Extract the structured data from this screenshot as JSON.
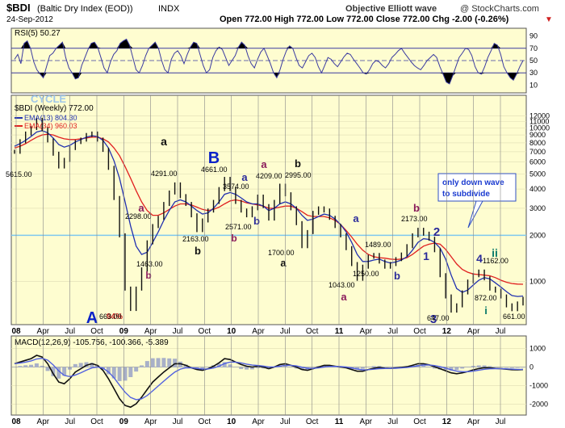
{
  "header": {
    "symbol": "$BDI",
    "symbol_desc": "(Baltic Dry Index (EOD))",
    "exchange": "INDX",
    "date": "24-Sep-2012",
    "wave_source": "Objective Elliott wave",
    "copyright": "@ StockCharts.com",
    "ohlc": "Open 772.00  High 772.00  Low 772.00  Close 772.00  Chg -2.00 (-0.26%)"
  },
  "rsi_panel": {
    "label": "RSI(5) 50.27",
    "levels": [
      "90",
      "70",
      "50",
      "30",
      "10"
    ],
    "series": [
      52,
      60,
      45,
      78,
      82,
      70,
      48,
      35,
      28,
      22,
      40,
      58,
      62,
      70,
      75,
      80,
      55,
      38,
      30,
      20,
      22,
      42,
      55,
      68,
      78,
      80,
      72,
      55,
      38,
      30,
      48,
      60,
      66,
      78,
      82,
      85,
      75,
      55,
      35,
      30,
      42,
      58,
      70,
      75,
      80,
      70,
      50,
      35,
      30,
      52,
      62,
      66,
      58,
      45,
      60,
      72,
      80,
      78,
      60,
      42,
      30,
      35,
      55,
      66,
      72,
      68,
      55,
      42,
      50,
      58,
      72,
      80,
      75,
      58,
      45,
      38,
      52,
      64,
      70,
      58,
      45,
      30,
      22,
      35,
      52,
      66,
      74,
      70,
      55,
      42,
      38,
      48,
      58,
      62,
      55,
      40,
      30,
      42,
      55,
      52,
      45,
      40,
      48,
      56,
      62,
      60,
      52,
      45,
      38,
      30,
      28,
      35,
      45,
      50,
      48,
      42,
      38,
      45,
      55,
      60,
      66,
      70,
      62,
      55,
      48,
      42,
      38,
      35,
      42,
      50,
      55,
      60,
      55,
      40,
      28,
      15,
      12,
      25,
      40,
      55,
      62,
      70,
      68,
      58,
      40,
      30,
      28,
      40,
      55,
      66,
      78,
      75,
      60,
      40,
      30,
      22,
      18,
      28,
      40,
      50
    ]
  },
  "price_panel": {
    "cycle_label": "CYCLE",
    "weekly_label": "$BDI (Weekly) 772.00",
    "ema13_label": "EMA(13) 804.30",
    "ema34_label": "EMA(34) 960.03",
    "yaxis_ticks": [
      "12000",
      "11000",
      "10000",
      "9000",
      "8000",
      "7000",
      "6000",
      "5000",
      "4000",
      "3000",
      "2000",
      "1000"
    ],
    "annotation_box": "only down wave to subdivide",
    "pct_label": "94%"
  },
  "macd_panel": {
    "label": "MACD(12,26,9) -105.756, -100.366, -5.389",
    "yaxis_ticks": [
      "1000",
      "0",
      "-1000",
      "-2000"
    ]
  },
  "x_axis_ticks": [
    "08",
    "Apr",
    "Jul",
    "Oct",
    "09",
    "Apr",
    "Jul",
    "Oct",
    "10",
    "Apr",
    "Jul",
    "Oct",
    "11",
    "Apr",
    "Jul",
    "Oct",
    "12",
    "Apr",
    "Jul"
  ],
  "chart_data": {
    "type": "line",
    "title": "$BDI (Baltic Dry Index (EOD))",
    "x_start": "2008-01",
    "x_end": "2012-09",
    "y_scale": "log",
    "series": [
      {
        "name": "$BDI (Weekly)",
        "values": [
          7000,
          8200,
          9200,
          10000,
          11300,
          9800,
          8300,
          6800,
          5615,
          6200,
          7400,
          8100,
          8400,
          9000,
          9200,
          8400,
          7200,
          5500,
          3500,
          2000,
          900,
          663,
          900,
          1200,
          1800,
          2298,
          2600,
          3200,
          3800,
          4291,
          3600,
          3200,
          2700,
          2163,
          2500,
          2900,
          3300,
          4000,
          4661,
          4000,
          3300,
          2900,
          2700,
          3000,
          3574,
          3100,
          2571,
          3300,
          4209,
          3700,
          3000,
          2400,
          1700,
          2100,
          2800,
          2995,
          2900,
          2600,
          2300,
          2000,
          1650,
          1300,
          1043,
          1250,
          1450,
          1489,
          1350,
          1250,
          1300,
          1400,
          1500,
          1700,
          2000,
          2173,
          2050,
          1900,
          1600,
          1100,
          800,
          647,
          700,
          850,
          1000,
          1100,
          1162,
          1050,
          900,
          872,
          800,
          700,
          661,
          720,
          772
        ]
      },
      {
        "name": "EMA(13)",
        "values": [
          7600,
          7900,
          8300,
          8800,
          9400,
          9600,
          9300,
          8600,
          7800,
          7500,
          7700,
          8100,
          8400,
          8700,
          8900,
          8800,
          8300,
          7400,
          6100,
          4700,
          3300,
          2300,
          1700,
          1500,
          1550,
          1800,
          2100,
          2500,
          2900,
          3300,
          3400,
          3300,
          3100,
          2900,
          2750,
          2800,
          3000,
          3300,
          3700,
          3800,
          3700,
          3500,
          3300,
          3200,
          3200,
          3100,
          2900,
          3000,
          3200,
          3300,
          3200,
          3000,
          2700,
          2500,
          2550,
          2650,
          2750,
          2700,
          2550,
          2350,
          2100,
          1800,
          1500,
          1350,
          1350,
          1380,
          1400,
          1350,
          1320,
          1340,
          1380,
          1450,
          1600,
          1800,
          1900,
          1880,
          1800,
          1650,
          1400,
          1100,
          900,
          850,
          880,
          950,
          1020,
          1060,
          1040,
          980,
          920,
          860,
          810,
          800,
          804
        ]
      },
      {
        "name": "EMA(34)",
        "values": [
          7400,
          7600,
          7900,
          8300,
          8700,
          9000,
          9100,
          9000,
          8700,
          8500,
          8400,
          8400,
          8500,
          8600,
          8700,
          8700,
          8500,
          8100,
          7400,
          6600,
          5600,
          4700,
          3900,
          3300,
          2900,
          2700,
          2700,
          2800,
          2950,
          3100,
          3200,
          3200,
          3150,
          3050,
          2950,
          2900,
          2950,
          3050,
          3200,
          3350,
          3400,
          3350,
          3250,
          3200,
          3150,
          3100,
          3000,
          3000,
          3050,
          3100,
          3100,
          3000,
          2850,
          2700,
          2650,
          2650,
          2650,
          2600,
          2500,
          2350,
          2150,
          1950,
          1750,
          1600,
          1500,
          1450,
          1430,
          1420,
          1400,
          1390,
          1400,
          1430,
          1500,
          1600,
          1700,
          1750,
          1780,
          1750,
          1620,
          1450,
          1300,
          1200,
          1150,
          1120,
          1110,
          1100,
          1090,
          1060,
          1020,
          990,
          970,
          962,
          960
        ]
      }
    ],
    "wave_labels": [
      {
        "text": "A",
        "color": "#0b23c8"
      },
      {
        "text": "a",
        "color": "#8a1a5a"
      },
      {
        "text": "b",
        "color": "#8a1a5a"
      },
      {
        "text": "a",
        "color": "#111111"
      },
      {
        "text": "b",
        "color": "#111111"
      },
      {
        "text": "B",
        "color": "#0b23c8"
      },
      {
        "text": "a",
        "color": "#2a2a9a"
      },
      {
        "text": "b",
        "color": "#2a2a9a"
      },
      {
        "text": "b",
        "color": "#8a1a5a"
      },
      {
        "text": "a",
        "color": "#8a1a5a"
      },
      {
        "text": "b",
        "color": "#111111"
      },
      {
        "text": "a",
        "color": "#111111"
      },
      {
        "text": "a",
        "color": "#8a1a5a"
      },
      {
        "text": "a",
        "color": "#2a2a9a"
      },
      {
        "text": "b",
        "color": "#2a2a9a"
      },
      {
        "text": "b",
        "color": "#8a1a5a"
      },
      {
        "text": "2",
        "color": "#2a2a9a"
      },
      {
        "text": "1",
        "color": "#2a2a9a"
      },
      {
        "text": "3",
        "color": "#2a2a9a"
      },
      {
        "text": "4",
        "color": "#2a2a9a"
      },
      {
        "text": "ii",
        "color": "#0a7a6a"
      },
      {
        "text": "i",
        "color": "#0a7a6a"
      }
    ],
    "value_labels": [
      "5615.00",
      "663.00",
      "2298.00",
      "1463.00",
      "4291.00",
      "2163.00",
      "4661.00",
      "3574.00",
      "2571.00",
      "4209.00",
      "2995.00",
      "1700.00",
      "1043.00",
      "1250.00",
      "1489.00",
      "2173.00",
      "647.00",
      "1162.00",
      "872.00",
      "661.00"
    ],
    "horizontal_line_value": 2000
  },
  "colors": {
    "panel_bg": "#fefdd0",
    "price_line": "#111111",
    "ema13": "#2030b0",
    "ema34": "#e02020",
    "hline": "#7ec8ef",
    "annotation_border": "#3050c0"
  }
}
